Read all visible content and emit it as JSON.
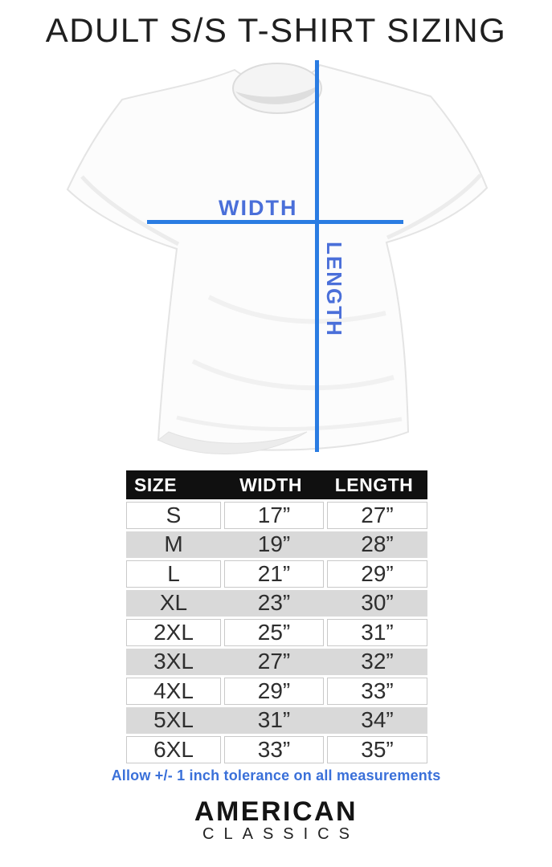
{
  "title": "ADULT S/S T-SHIRT SIZING",
  "diagram": {
    "width_label": "WIDTH",
    "length_label": "LENGTH"
  },
  "chart_data": {
    "type": "table",
    "title": "ADULT S/S T-SHIRT SIZING",
    "columns": [
      "SIZE",
      "WIDTH",
      "LENGTH"
    ],
    "rows": [
      {
        "size": "S",
        "width": "17”",
        "length": "27”"
      },
      {
        "size": "M",
        "width": "19”",
        "length": "28”"
      },
      {
        "size": "L",
        "width": "21”",
        "length": "29”"
      },
      {
        "size": "XL",
        "width": "23”",
        "length": "30”"
      },
      {
        "size": "2XL",
        "width": "25”",
        "length": "31”"
      },
      {
        "size": "3XL",
        "width": "27”",
        "length": "32”"
      },
      {
        "size": "4XL",
        "width": "29”",
        "length": "33”"
      },
      {
        "size": "5XL",
        "width": "31”",
        "length": "34”"
      },
      {
        "size": "6XL",
        "width": "33”",
        "length": "35”"
      }
    ]
  },
  "note": "Allow +/- 1 inch tolerance on all measurements",
  "brand": {
    "line1": "AMERICAN",
    "line2": "CLASSICS"
  },
  "colors": {
    "line_blue": "#2a7ce2",
    "label_blue": "#4a6fd9",
    "note_blue": "#3a70d9",
    "header_bg": "#101010",
    "row_gray": "#d9d9d9"
  }
}
